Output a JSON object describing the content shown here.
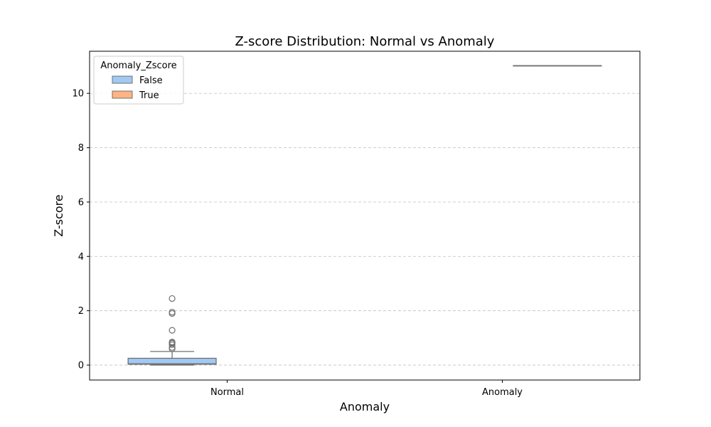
{
  "chart_data": {
    "type": "box",
    "title": "Z-score Distribution: Normal vs Anomaly",
    "xlabel": "Anomaly",
    "ylabel": "Z-score",
    "categories": [
      "Normal",
      "Anomaly"
    ],
    "ylim": [
      -0.55,
      11.55
    ],
    "yticks": [
      0,
      2,
      4,
      6,
      8,
      10
    ],
    "grid": {
      "axis": "y",
      "style": "dashed"
    },
    "legend": {
      "title": "Anomaly_Zscore",
      "placement": "top-left",
      "entries": [
        {
          "label": "False",
          "color": "#a1c9f4"
        },
        {
          "label": "True",
          "color": "#ffb482"
        }
      ]
    },
    "series": [
      {
        "name": "False",
        "color": "#a1c9f4",
        "boxes": [
          {
            "category": "Normal",
            "min": 0.0,
            "q1": 0.03,
            "median": 0.05,
            "q3": 0.25,
            "max": 0.5,
            "outliers": [
              0.6,
              0.65,
              0.75,
              0.8,
              0.82,
              0.85,
              1.28,
              1.9,
              1.95,
              2.45
            ]
          }
        ]
      },
      {
        "name": "True",
        "color": "#ffb482",
        "boxes": [
          {
            "category": "Anomaly",
            "min": 11.02,
            "q1": 11.02,
            "median": 11.02,
            "q3": 11.02,
            "max": 11.02,
            "outliers": []
          }
        ]
      }
    ]
  }
}
